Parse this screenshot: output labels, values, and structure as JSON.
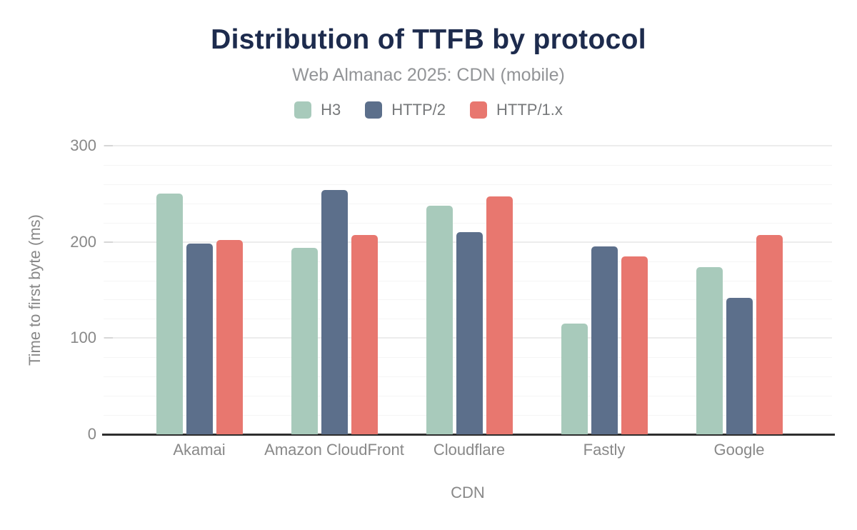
{
  "chart_data": {
    "type": "bar",
    "title": "Distribution of TTFB by protocol",
    "subtitle": "Web Almanac 2025: CDN (mobile)",
    "xlabel": "CDN",
    "ylabel": "Time to first byte (ms)",
    "ylim": [
      0,
      300
    ],
    "yticks": [
      0,
      100,
      200,
      300
    ],
    "grid": "horizontal gridlines every 20 ms (minor), every 100 ms (major), dark baseline at 0",
    "legend_position": "top center",
    "categories": [
      "Akamai",
      "Amazon CloudFront",
      "Cloudflare",
      "Fastly",
      "Google"
    ],
    "series": [
      {
        "name": "H3",
        "color": "#a8cabb",
        "values": [
          250,
          194,
          238,
          115,
          174
        ]
      },
      {
        "name": "HTTP/2",
        "color": "#5c6f8b",
        "values": [
          198,
          254,
          210,
          195,
          142
        ]
      },
      {
        "name": "HTTP/1.x",
        "color": "#e8776f",
        "values": [
          202,
          207,
          247,
          185,
          207
        ]
      }
    ],
    "colors": {
      "title_text": "#1d2b4d",
      "subtitle_text": "#929497",
      "axis_text": "#888888",
      "legend_text": "#76787a",
      "baseline": "#2e2e2e",
      "gridline_minor": "#f5f5f5",
      "gridline_major": "#ececec"
    }
  }
}
